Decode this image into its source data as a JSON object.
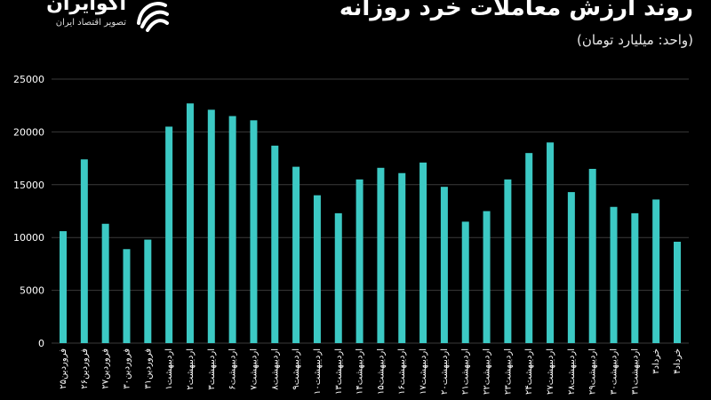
{
  "header": {
    "title": "روند ارزش معاملات خرد روزانه",
    "subtitle": "(واحد: میلیارد تومان)"
  },
  "brand": {
    "name": "اکوایران",
    "tagline": "تصویر اقتصاد ایران",
    "logo_icon": "swirl-logo-icon"
  },
  "colors": {
    "bar": "#3cc9c4",
    "grid": "#3a3a3a",
    "background": "#000000"
  },
  "chart_data": {
    "type": "bar",
    "title": "روند ارزش معاملات خرد روزانه",
    "ylabel": "(واحد: میلیارد تومان)",
    "ylim": [
      0,
      25000
    ],
    "yticks": [
      0,
      5000,
      10000,
      15000,
      20000,
      25000
    ],
    "ytick_labels": [
      "0",
      "5000",
      "10000",
      "15000",
      "20000",
      "25000"
    ],
    "grid": true,
    "categories": [
      "فروردین۲۵",
      "فروردین۲۶",
      "فروردین۲۷",
      "فروردین۳۰",
      "فروردین۳۱",
      "اردیبهشت۱",
      "اردیبهشت۲",
      "اردیبهشت۳",
      "اردیبهشت۶",
      "اردیبهشت۷",
      "اردیبهشت۸",
      "اردیبهشت۹",
      "اردیبهشت۱۰",
      "اردیبهشت۱۳",
      "اردیبهشت۱۴",
      "اردیبهشت۱۵",
      "اردیبهشت۱۶",
      "اردیبهشت۱۷",
      "اردیبهشت۲۰",
      "اردیبهشت۲۱",
      "اردیبهشت۲۲",
      "اردیبهشت۲۳",
      "اردیبهشت۲۴",
      "اردیبهشت۲۷",
      "اردیبهشت۲۸",
      "اردیبهشت۲۹",
      "اردیبهشت۳۰",
      "اردیبهشت۳۱",
      "خرداد۳",
      "خرداد۴"
    ],
    "values": [
      10600,
      17400,
      11300,
      8900,
      9800,
      20500,
      22700,
      22100,
      21500,
      21100,
      18700,
      16700,
      14000,
      12300,
      15500,
      16600,
      16100,
      17100,
      14800,
      11500,
      12500,
      15500,
      18000,
      19000,
      14300,
      16500,
      12900,
      12300,
      13600,
      9600
    ]
  }
}
